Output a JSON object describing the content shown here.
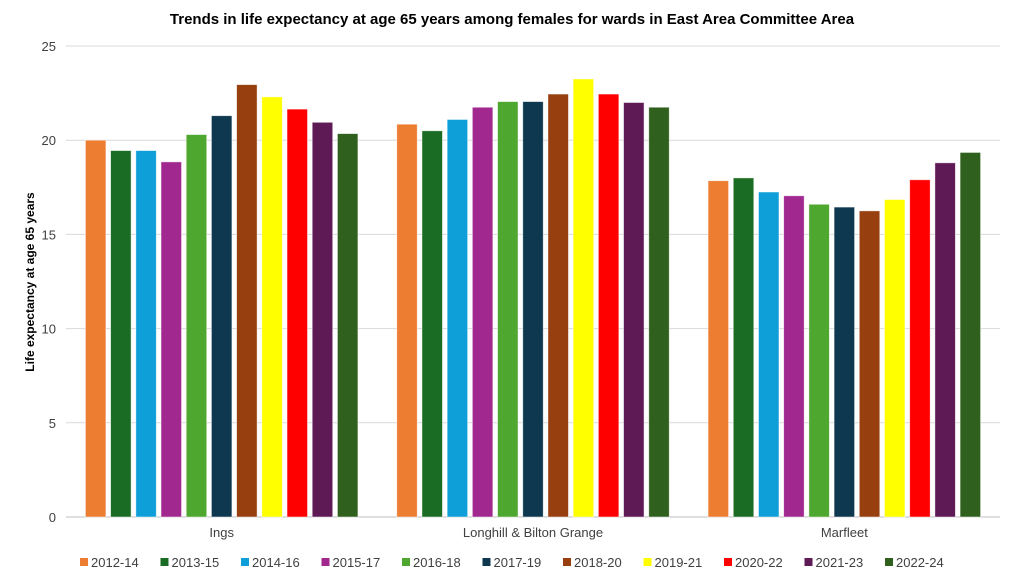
{
  "chart_data": {
    "type": "bar",
    "title": "Trends in life expectancy at  age 65 years among females for wards in East Area Committee Area",
    "xlabel": "",
    "ylabel": "Life expectancy at  age 65 years",
    "ylim": [
      0,
      25
    ],
    "yticks": [
      0,
      5,
      10,
      15,
      20,
      25
    ],
    "grid": true,
    "legend_position": "bottom",
    "categories": [
      "Ings",
      "Longhill & Bilton Grange",
      "Marfleet"
    ],
    "series": [
      {
        "name": "2012-14",
        "color": "#ED7D31",
        "values": [
          20.0,
          20.85,
          17.85
        ]
      },
      {
        "name": "2013-15",
        "color": "#1A6B24",
        "values": [
          19.45,
          20.5,
          18.0
        ]
      },
      {
        "name": "2014-16",
        "color": "#0E9FD8",
        "values": [
          19.45,
          21.1,
          17.25
        ]
      },
      {
        "name": "2015-17",
        "color": "#A0288F",
        "values": [
          18.85,
          21.75,
          17.05
        ]
      },
      {
        "name": "2016-18",
        "color": "#4EA72E",
        "values": [
          20.3,
          22.05,
          16.6
        ]
      },
      {
        "name": "2017-19",
        "color": "#0E384F",
        "values": [
          21.3,
          22.05,
          16.45
        ]
      },
      {
        "name": "2018-20",
        "color": "#973F0E",
        "values": [
          22.95,
          22.45,
          16.25
        ]
      },
      {
        "name": "2019-21",
        "color": "#FFFF00",
        "values": [
          22.3,
          23.25,
          16.85
        ]
      },
      {
        "name": "2020-22",
        "color": "#FF0000",
        "values": [
          21.65,
          22.45,
          17.9
        ]
      },
      {
        "name": "2021-23",
        "color": "#5E1A55",
        "values": [
          20.95,
          22.0,
          18.8
        ]
      },
      {
        "name": "2022-24",
        "color": "#2F601D",
        "values": [
          20.35,
          21.75,
          19.35
        ]
      }
    ]
  }
}
